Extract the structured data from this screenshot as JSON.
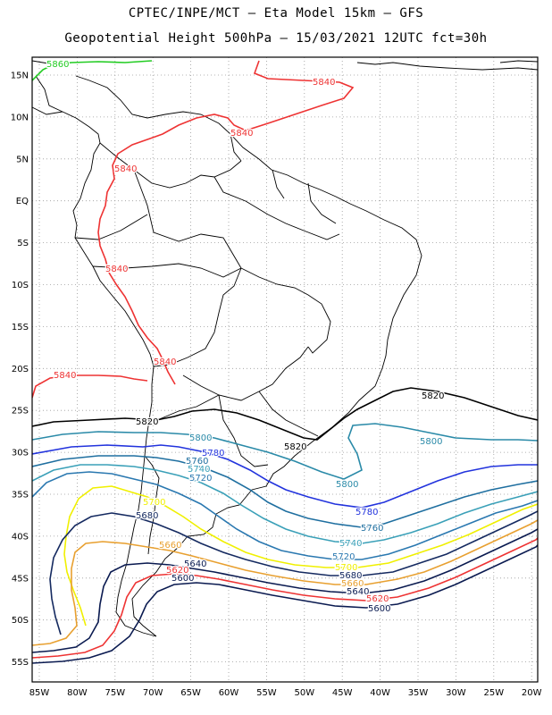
{
  "title_line1": "CPTEC/INPE/MCT –  Eta Model 15km – GFS",
  "title_line2": "Geopotential Height 500hPa – 15/03/2021 12UTC fct=30h",
  "lat_ticks": [
    "15N",
    "10N",
    "5N",
    "EQ",
    "5S",
    "10S",
    "15S",
    "20S",
    "25S",
    "30S",
    "35S",
    "40S",
    "45S",
    "50S",
    "55S"
  ],
  "lon_ticks": [
    "85W",
    "80W",
    "75W",
    "70W",
    "65W",
    "60W",
    "55W",
    "50W",
    "45W",
    "40W",
    "35W",
    "30W",
    "25W",
    "20W"
  ],
  "contour_labels": {
    "c5860": "5860",
    "c5840": "5840",
    "c5820": "5820",
    "c5800": "5800",
    "c5780": "5780",
    "c5760": "5760",
    "c5740": "5740",
    "c5720": "5720",
    "c5700": "5700",
    "c5680": "5680",
    "c5660": "5660",
    "c5640": "5640",
    "c5620": "5620",
    "c5600": "5600"
  },
  "colors": {
    "c5860": "#22cc22",
    "c5840": "#ee3333",
    "c5820": "#000000",
    "c5800": "#2a8aa8",
    "c5780": "#2233dd",
    "c5760": "#1f6fa0",
    "c5740": "#3aa0b8",
    "c5720": "#2a78b0",
    "c5700": "#f0f000",
    "c5680": "#152a60",
    "c5660": "#e8a030",
    "c5640": "#0a1a50",
    "c5620": "#ee3333",
    "c5600": "#0a1a50"
  }
}
